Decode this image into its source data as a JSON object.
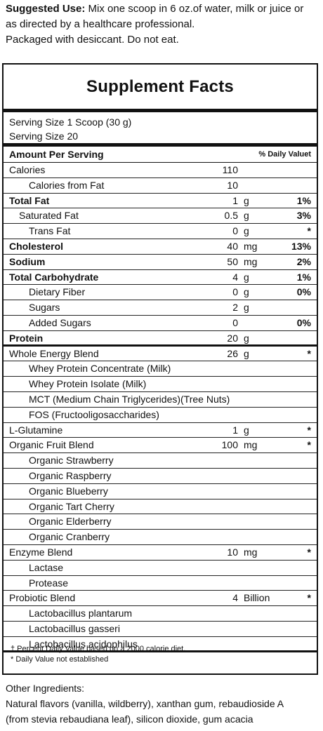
{
  "top": {
    "suggested_label": "Suggested Use:",
    "suggested_text": " Mix one scoop in 6 oz.of water, milk or juice or",
    "line2": "as directed by a healthcare professional.",
    "line3": "Packaged with desiccant. Do not eat."
  },
  "panel": {
    "title": "Supplement Facts",
    "serving_size": "Serving Size 1 Scoop (30 g)",
    "servings": "Serving Size 20",
    "amount_header": "Amount Per Serving",
    "dv_header": "% Daily Valuet",
    "rows": [
      {
        "label": "Calories",
        "amt": "110",
        "unit": "",
        "pct": "",
        "indent": 1,
        "bold": false
      },
      {
        "label": "Calories from Fat",
        "amt": "10",
        "unit": "",
        "pct": "",
        "indent": 3,
        "bold": false
      },
      {
        "label": "Total Fat",
        "amt": "1",
        "unit": "g",
        "pct": "1%",
        "indent": 1,
        "bold": true
      },
      {
        "label": "Saturated Fat",
        "amt": "0.5",
        "unit": "g",
        "pct": "3%",
        "indent": 2,
        "bold": false
      },
      {
        "label": "Trans Fat",
        "amt": "0",
        "unit": "g",
        "pct": "*",
        "indent": 3,
        "bold": false
      },
      {
        "label": "Cholesterol",
        "amt": "40",
        "unit": "mg",
        "pct": "13%",
        "indent": 1,
        "bold": true
      },
      {
        "label": "Sodium",
        "amt": "50",
        "unit": "mg",
        "pct": "2%",
        "indent": 1,
        "bold": true
      },
      {
        "label": "Total Carbohydrate",
        "amt": "4",
        "unit": "g",
        "pct": "1%",
        "indent": 1,
        "bold": true
      },
      {
        "label": "Dietary Fiber",
        "amt": "0",
        "unit": "g",
        "pct": "0%",
        "indent": 3,
        "bold": false
      },
      {
        "label": "Sugars",
        "amt": "2",
        "unit": "g",
        "pct": "",
        "indent": 3,
        "bold": false
      },
      {
        "label": "Added Sugars",
        "amt": "0",
        "unit": "",
        "pct": "0%",
        "indent": 3,
        "bold": false
      },
      {
        "label": "Protein",
        "amt": "20",
        "unit": "g",
        "pct": "",
        "indent": 1,
        "bold": true,
        "thick": true
      },
      {
        "label": "Whole Energy Blend",
        "amt": "26",
        "unit": "g",
        "pct": "*",
        "indent": 1,
        "bold": false
      },
      {
        "label": "Whey Protein Concentrate (Milk)",
        "amt": "",
        "unit": "",
        "pct": "",
        "indent": 3,
        "bold": false
      },
      {
        "label": "Whey Protein Isolate (Milk)",
        "amt": "",
        "unit": "",
        "pct": "",
        "indent": 3,
        "bold": false
      },
      {
        "label": "MCT (Medium Chain Triglycerides)(Tree Nuts)",
        "amt": "",
        "unit": "",
        "pct": "",
        "indent": 3,
        "bold": false
      },
      {
        "label": "FOS (Fructooligosaccharides)",
        "amt": "",
        "unit": "",
        "pct": "",
        "indent": 3,
        "bold": false
      },
      {
        "label": "L-Glutamine",
        "amt": "1",
        "unit": "g",
        "pct": "*",
        "indent": 1,
        "bold": false
      },
      {
        "label": "Organic Fruit Blend",
        "amt": "100",
        "unit": "mg",
        "pct": "*",
        "indent": 1,
        "bold": false
      },
      {
        "label": "Organic Strawberry",
        "amt": "",
        "unit": "",
        "pct": "",
        "indent": 3,
        "bold": false
      },
      {
        "label": "Organic Raspberry",
        "amt": "",
        "unit": "",
        "pct": "",
        "indent": 3,
        "bold": false
      },
      {
        "label": "Organic Blueberry",
        "amt": "",
        "unit": "",
        "pct": "",
        "indent": 3,
        "bold": false
      },
      {
        "label": "Organic Tart Cherry",
        "amt": "",
        "unit": "",
        "pct": "",
        "indent": 3,
        "bold": false
      },
      {
        "label": "Organic Elderberry",
        "amt": "",
        "unit": "",
        "pct": "",
        "indent": 3,
        "bold": false
      },
      {
        "label": "Organic Cranberry",
        "amt": "",
        "unit": "",
        "pct": "",
        "indent": 3,
        "bold": false
      },
      {
        "label": "Enzyme Blend",
        "amt": "10",
        "unit": "mg",
        "pct": "*",
        "indent": 1,
        "bold": false
      },
      {
        "label": "Lactase",
        "amt": "",
        "unit": "",
        "pct": "",
        "indent": 3,
        "bold": false
      },
      {
        "label": "Protease",
        "amt": "",
        "unit": "",
        "pct": "",
        "indent": 3,
        "bold": false
      },
      {
        "label": "Probiotic Blend",
        "amt": "4",
        "unit": "Billion",
        "pct": "*",
        "indent": 1,
        "bold": false
      },
      {
        "label": "Lactobacillus plantarum",
        "amt": "",
        "unit": "",
        "pct": "",
        "indent": 3,
        "bold": false
      },
      {
        "label": "Lactobacillus gasseri",
        "amt": "",
        "unit": "",
        "pct": "",
        "indent": 3,
        "bold": false
      },
      {
        "label": "Lactobacillus acidophilus",
        "amt": "",
        "unit": "",
        "pct": "",
        "indent": 3,
        "bold": false,
        "thick": true
      }
    ],
    "foot1": "† Percent Daily Value based on a 2000 calorie diet.",
    "foot2": "* Daily Value not established"
  },
  "other": {
    "heading": "Other Ingredients:",
    "line1": "Natural flavors (vanilla, wildberry), xanthan gum, rebaudioside A",
    "line2": "(from stevia rebaudiana leaf), silicon dioxide, gum acacia"
  }
}
